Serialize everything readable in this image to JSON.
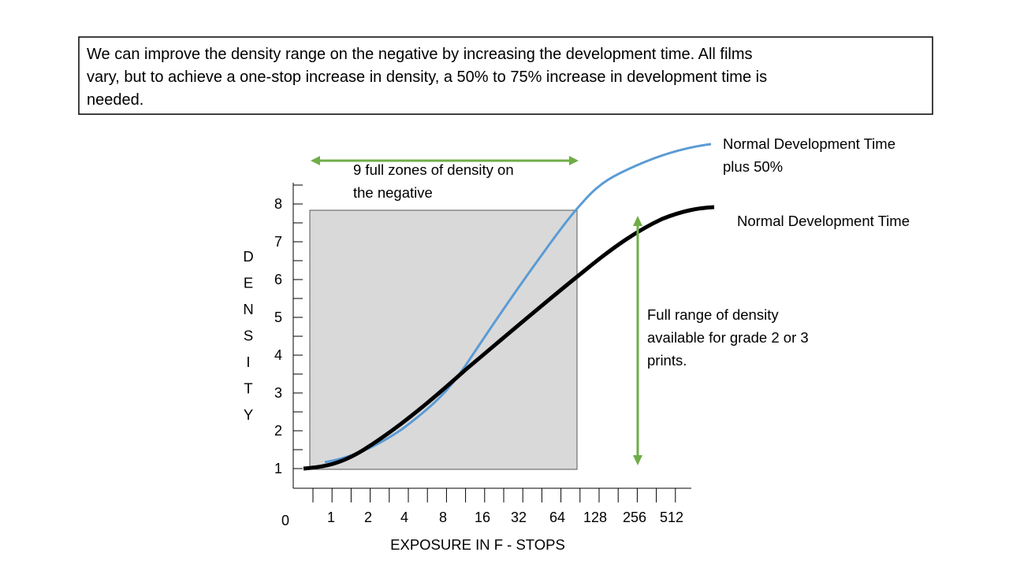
{
  "header": {
    "lines": [
      "We can improve the density range on the negative by increasing the development time.  All films",
      "vary, but to achieve a one-stop increase in density, a 50% to 75% increase in development time is",
      "needed."
    ]
  },
  "diagram": {
    "y_axis_letters": [
      "D",
      "E",
      "N",
      "S",
      "I",
      "T",
      "Y"
    ],
    "y_tick_labels": [
      "8",
      "7",
      "6",
      "5",
      "4",
      "3",
      "2",
      "1"
    ],
    "x_tick_labels": [
      "0",
      "1",
      "2",
      "4",
      "8",
      "16",
      "32",
      "64",
      "128",
      "256",
      "512"
    ],
    "x_axis_label": "EXPOSURE IN F - STOPS",
    "zones_note": [
      "9 full zones of density on",
      "the negative"
    ],
    "blue_curve_label": [
      "Normal Development Time",
      "plus 50%"
    ],
    "black_curve_label": "Normal Development Time",
    "range_note": [
      "Full range of density",
      "available for grade 2 or 3",
      "prints."
    ]
  }
}
